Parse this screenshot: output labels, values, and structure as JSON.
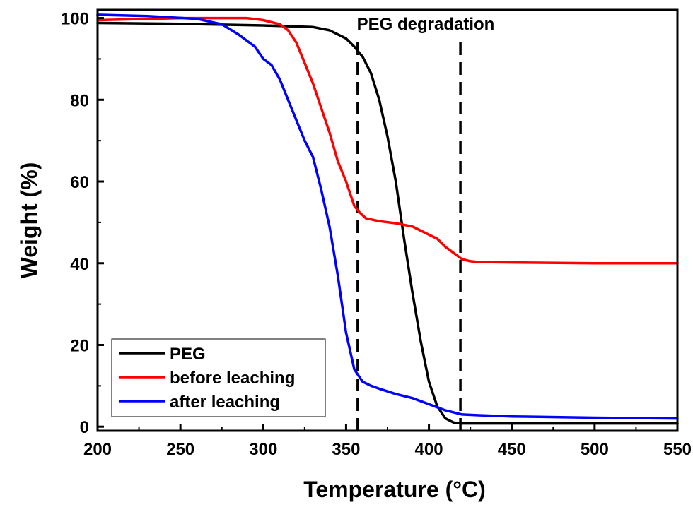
{
  "chart_data": {
    "type": "line",
    "title": "",
    "xlabel": "Temperature (°C)",
    "ylabel": "Weight (%)",
    "xlim": [
      200,
      550
    ],
    "ylim": [
      -1,
      102
    ],
    "x_ticks": [
      200,
      250,
      300,
      350,
      400,
      450,
      500,
      550
    ],
    "y_ticks": [
      0,
      20,
      40,
      60,
      80,
      100
    ],
    "grid": false,
    "legend_position": "bottom-left",
    "annotations": [
      {
        "text": "PEG degradation",
        "x": 390,
        "y": 101
      }
    ],
    "reference_lines": [
      {
        "type": "vertical",
        "x": 357,
        "style": "dashed",
        "color": "#000000"
      },
      {
        "type": "vertical",
        "x": 419,
        "style": "dashed",
        "color": "#000000"
      }
    ],
    "series": [
      {
        "name": "PEG",
        "color": "#000000",
        "points": [
          [
            200,
            98.8
          ],
          [
            250,
            98.6
          ],
          [
            300,
            98.2
          ],
          [
            330,
            97.8
          ],
          [
            340,
            97.0
          ],
          [
            350,
            95.0
          ],
          [
            355,
            93.0
          ],
          [
            360,
            90.5
          ],
          [
            365,
            86.5
          ],
          [
            370,
            80.0
          ],
          [
            375,
            71.0
          ],
          [
            380,
            60.0
          ],
          [
            385,
            46.0
          ],
          [
            390,
            33.0
          ],
          [
            395,
            21.0
          ],
          [
            400,
            11.0
          ],
          [
            405,
            5.0
          ],
          [
            410,
            2.0
          ],
          [
            415,
            1.0
          ],
          [
            420,
            0.8
          ],
          [
            450,
            0.8
          ],
          [
            500,
            0.8
          ],
          [
            550,
            0.8
          ]
        ]
      },
      {
        "name": "before leaching",
        "color": "#ff0000",
        "points": [
          [
            200,
            99.5
          ],
          [
            250,
            100.0
          ],
          [
            290,
            100.0
          ],
          [
            300,
            99.5
          ],
          [
            310,
            98.5
          ],
          [
            315,
            97.0
          ],
          [
            320,
            94.0
          ],
          [
            325,
            89.0
          ],
          [
            330,
            84.0
          ],
          [
            335,
            78.0
          ],
          [
            340,
            72.0
          ],
          [
            345,
            65.0
          ],
          [
            350,
            60.0
          ],
          [
            355,
            54.0
          ],
          [
            358,
            52.5
          ],
          [
            362,
            51.0
          ],
          [
            370,
            50.3
          ],
          [
            380,
            49.8
          ],
          [
            390,
            49.0
          ],
          [
            395,
            48.0
          ],
          [
            400,
            47.0
          ],
          [
            405,
            46.0
          ],
          [
            410,
            44.0
          ],
          [
            415,
            42.5
          ],
          [
            420,
            41.0
          ],
          [
            425,
            40.5
          ],
          [
            430,
            40.3
          ],
          [
            450,
            40.2
          ],
          [
            500,
            40.0
          ],
          [
            550,
            40.0
          ]
        ]
      },
      {
        "name": "after leaching",
        "color": "#0000ff",
        "points": [
          [
            200,
            100.8
          ],
          [
            230,
            100.5
          ],
          [
            260,
            99.8
          ],
          [
            275,
            98.5
          ],
          [
            285,
            96.0
          ],
          [
            295,
            93.0
          ],
          [
            300,
            90.0
          ],
          [
            305,
            88.5
          ],
          [
            310,
            85.0
          ],
          [
            315,
            80.0
          ],
          [
            320,
            75.0
          ],
          [
            325,
            70.0
          ],
          [
            330,
            66.0
          ],
          [
            335,
            58.0
          ],
          [
            340,
            49.0
          ],
          [
            345,
            37.0
          ],
          [
            350,
            23.0
          ],
          [
            355,
            14.0
          ],
          [
            360,
            11.0
          ],
          [
            365,
            10.0
          ],
          [
            370,
            9.3
          ],
          [
            380,
            8.0
          ],
          [
            390,
            7.0
          ],
          [
            400,
            5.5
          ],
          [
            410,
            4.0
          ],
          [
            420,
            3.0
          ],
          [
            430,
            2.8
          ],
          [
            450,
            2.5
          ],
          [
            500,
            2.2
          ],
          [
            550,
            2.0
          ]
        ]
      }
    ]
  }
}
